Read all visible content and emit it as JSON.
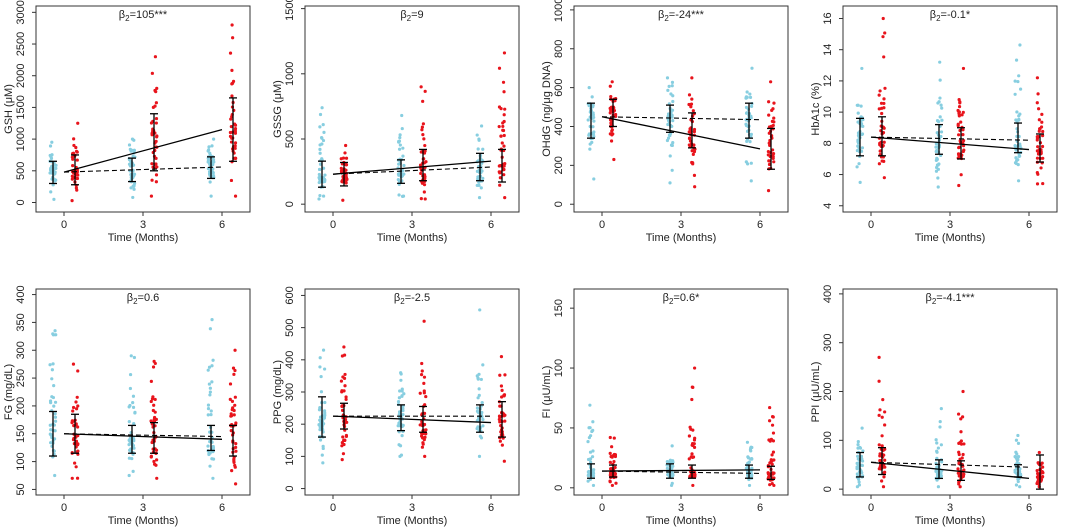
{
  "figure": {
    "x_axis_label": "Time (Months)",
    "colors": {
      "control": "#87cee0",
      "treatment": "#e8141c",
      "frame": "#333333",
      "line": "#000000"
    }
  },
  "chart_data": [
    {
      "type": "scatter",
      "title": "β₂=105***",
      "title_main": "β",
      "title_sub": "2",
      "title_rest": "=105***",
      "ylabel": "GSH (μM)",
      "xlabel": "Time (Months)",
      "xticks": [
        0,
        3,
        6
      ],
      "yticks": [
        0,
        500,
        1000,
        1500,
        2000,
        2500,
        3000
      ],
      "ylim": [
        -150,
        3100
      ],
      "errorbars": [
        {
          "group": "control",
          "x": 0,
          "mean": 480,
          "low": 300,
          "high": 650
        },
        {
          "group": "control",
          "x": 3,
          "mean": 520,
          "low": 330,
          "high": 700
        },
        {
          "group": "control",
          "x": 6,
          "mean": 550,
          "low": 380,
          "high": 720
        },
        {
          "group": "treatment",
          "x": 0,
          "mean": 500,
          "low": 280,
          "high": 750
        },
        {
          "group": "treatment",
          "x": 3,
          "mean": 900,
          "low": 500,
          "high": 1400
        },
        {
          "group": "treatment",
          "x": 6,
          "mean": 1150,
          "low": 650,
          "high": 1650
        }
      ],
      "fit_solid": [
        [
          0,
          480
        ],
        [
          6,
          1150
        ]
      ],
      "fit_dashed": [
        [
          0,
          480
        ],
        [
          6,
          560
        ]
      ],
      "control_range": [
        [
          50,
          950
        ],
        [
          80,
          1000
        ],
        [
          100,
          1000
        ]
      ],
      "treatment_range": [
        [
          30,
          1250
        ],
        [
          100,
          2300
        ],
        [
          100,
          2800
        ]
      ]
    },
    {
      "type": "scatter",
      "title": "β₂=9",
      "title_main": "β",
      "title_sub": "2",
      "title_rest": "=9",
      "ylabel": "GSSG (μM)",
      "xlabel": "Time (Months)",
      "xticks": [
        0,
        3,
        6
      ],
      "yticks": [
        0,
        500,
        1000,
        1500
      ],
      "ylim": [
        -60,
        1520
      ],
      "errorbars": [
        {
          "group": "control",
          "x": 0,
          "mean": 230,
          "low": 130,
          "high": 330
        },
        {
          "group": "control",
          "x": 3,
          "mean": 250,
          "low": 160,
          "high": 340
        },
        {
          "group": "control",
          "x": 6,
          "mean": 280,
          "low": 180,
          "high": 390
        },
        {
          "group": "treatment",
          "x": 0,
          "mean": 230,
          "low": 140,
          "high": 320
        },
        {
          "group": "treatment",
          "x": 3,
          "mean": 300,
          "low": 180,
          "high": 420
        },
        {
          "group": "treatment",
          "x": 6,
          "mean": 330,
          "low": 170,
          "high": 420
        }
      ],
      "fit_solid": [
        [
          0,
          230
        ],
        [
          6,
          330
        ]
      ],
      "fit_dashed": [
        [
          0,
          230
        ],
        [
          6,
          285
        ]
      ],
      "control_range": [
        [
          40,
          740
        ],
        [
          60,
          680
        ],
        [
          50,
          600
        ]
      ],
      "treatment_range": [
        [
          30,
          450
        ],
        [
          40,
          900
        ],
        [
          50,
          1160
        ]
      ]
    },
    {
      "type": "scatter",
      "title": "β₂=-24***",
      "title_main": "β",
      "title_sub": "2",
      "title_rest": "=-24***",
      "ylabel": "OHdG (ng/μg DNA)",
      "xlabel": "Time (Months)",
      "xticks": [
        0,
        3,
        6
      ],
      "yticks": [
        0,
        200,
        400,
        600,
        800,
        1000
      ],
      "ylim": [
        -40,
        1020
      ],
      "errorbars": [
        {
          "group": "control",
          "x": 0,
          "mean": 430,
          "low": 340,
          "high": 520
        },
        {
          "group": "control",
          "x": 3,
          "mean": 430,
          "low": 370,
          "high": 510
        },
        {
          "group": "control",
          "x": 6,
          "mean": 430,
          "low": 340,
          "high": 520
        },
        {
          "group": "treatment",
          "x": 0,
          "mean": 450,
          "low": 400,
          "high": 540
        },
        {
          "group": "treatment",
          "x": 3,
          "mean": 380,
          "low": 290,
          "high": 470
        },
        {
          "group": "treatment",
          "x": 6,
          "mean": 290,
          "low": 180,
          "high": 390
        }
      ],
      "fit_solid": [
        [
          0,
          450
        ],
        [
          6,
          285
        ]
      ],
      "fit_dashed": [
        [
          0,
          450
        ],
        [
          6,
          435
        ]
      ],
      "control_range": [
        [
          130,
          600
        ],
        [
          110,
          650
        ],
        [
          120,
          700
        ]
      ],
      "treatment_range": [
        [
          230,
          630
        ],
        [
          90,
          650
        ],
        [
          70,
          630
        ]
      ]
    },
    {
      "type": "scatter",
      "title": "β₂=-0.1*",
      "title_main": "β",
      "title_sub": "2",
      "title_rest": "=-0.1*",
      "ylabel": "HbA1c (%)",
      "xlabel": "Time (Months)",
      "xticks": [
        0,
        3,
        6
      ],
      "yticks": [
        4,
        6,
        8,
        10,
        12,
        14,
        16
      ],
      "ylim": [
        3.6,
        16.8
      ],
      "errorbars": [
        {
          "group": "control",
          "x": 0,
          "mean": 8.4,
          "low": 7.2,
          "high": 9.6
        },
        {
          "group": "control",
          "x": 3,
          "mean": 8.2,
          "low": 7.3,
          "high": 9.2
        },
        {
          "group": "control",
          "x": 6,
          "mean": 8.2,
          "low": 7.4,
          "high": 9.3
        },
        {
          "group": "treatment",
          "x": 0,
          "mean": 8.4,
          "low": 7.2,
          "high": 9.7
        },
        {
          "group": "treatment",
          "x": 3,
          "mean": 8.0,
          "low": 7.0,
          "high": 9.0
        },
        {
          "group": "treatment",
          "x": 6,
          "mean": 7.6,
          "low": 6.8,
          "high": 8.6
        }
      ],
      "fit_solid": [
        [
          0,
          8.4
        ],
        [
          6,
          7.6
        ]
      ],
      "fit_dashed": [
        [
          0,
          8.4
        ],
        [
          6,
          8.2
        ]
      ],
      "control_range": [
        [
          5.5,
          12.8
        ],
        [
          5.2,
          13.2
        ],
        [
          5.6,
          14.3
        ]
      ],
      "treatment_range": [
        [
          5.8,
          16.0
        ],
        [
          5.3,
          12.8
        ],
        [
          5.4,
          12.2
        ]
      ]
    },
    {
      "type": "scatter",
      "title": "β₂=0.6",
      "title_main": "β",
      "title_sub": "2",
      "title_rest": "=0.6",
      "ylabel": "FG (mg/dL)",
      "xlabel": "Time (Months)",
      "xticks": [
        0,
        3,
        6
      ],
      "yticks": [
        50,
        100,
        150,
        200,
        250,
        300,
        350,
        400
      ],
      "ylim": [
        40,
        410
      ],
      "errorbars": [
        {
          "group": "control",
          "x": 0,
          "mean": 150,
          "low": 110,
          "high": 190
        },
        {
          "group": "control",
          "x": 3,
          "mean": 145,
          "low": 115,
          "high": 165
        },
        {
          "group": "control",
          "x": 6,
          "mean": 145,
          "low": 120,
          "high": 165
        },
        {
          "group": "treatment",
          "x": 0,
          "mean": 150,
          "low": 115,
          "high": 185
        },
        {
          "group": "treatment",
          "x": 3,
          "mean": 145,
          "low": 115,
          "high": 170
        },
        {
          "group": "treatment",
          "x": 6,
          "mean": 140,
          "low": 110,
          "high": 165
        }
      ],
      "fit_solid": [
        [
          0,
          150
        ],
        [
          6,
          140
        ]
      ],
      "fit_dashed": [
        [
          0,
          150
        ],
        [
          6,
          145
        ]
      ],
      "control_range": [
        [
          75,
          335
        ],
        [
          75,
          290
        ],
        [
          70,
          355
        ]
      ],
      "treatment_range": [
        [
          70,
          275
        ],
        [
          70,
          280
        ],
        [
          60,
          300
        ]
      ]
    },
    {
      "type": "scatter",
      "title": "β₂=-2.5",
      "title_main": "β",
      "title_sub": "2",
      "title_rest": "=-2.5",
      "ylabel": "PPG (mg/dL)",
      "xlabel": "Time (Months)",
      "xticks": [
        0,
        3,
        6
      ],
      "yticks": [
        0,
        100,
        200,
        300,
        400,
        500,
        600
      ],
      "ylim": [
        -20,
        620
      ],
      "errorbars": [
        {
          "group": "control",
          "x": 0,
          "mean": 220,
          "low": 160,
          "high": 285
        },
        {
          "group": "control",
          "x": 3,
          "mean": 220,
          "low": 180,
          "high": 260
        },
        {
          "group": "control",
          "x": 6,
          "mean": 215,
          "low": 175,
          "high": 260
        },
        {
          "group": "treatment",
          "x": 0,
          "mean": 225,
          "low": 185,
          "high": 265
        },
        {
          "group": "treatment",
          "x": 3,
          "mean": 215,
          "low": 175,
          "high": 255
        },
        {
          "group": "treatment",
          "x": 6,
          "mean": 210,
          "low": 160,
          "high": 270
        }
      ],
      "fit_solid": [
        [
          0,
          225
        ],
        [
          6,
          205
        ]
      ],
      "fit_dashed": [
        [
          0,
          225
        ],
        [
          6,
          225
        ]
      ],
      "control_range": [
        [
          80,
          430
        ],
        [
          100,
          360
        ],
        [
          100,
          555
        ]
      ],
      "treatment_range": [
        [
          90,
          440
        ],
        [
          100,
          520
        ],
        [
          85,
          410
        ]
      ]
    },
    {
      "type": "scatter",
      "title": "β₂=0.6*",
      "title_main": "β",
      "title_sub": "2",
      "title_rest": "=0.6*",
      "ylabel": "FI (μU/mL)",
      "xlabel": "Time (Months)",
      "xticks": [
        0,
        3,
        6
      ],
      "yticks": [
        0,
        50,
        100,
        150
      ],
      "ylim": [
        -6,
        166
      ],
      "errorbars": [
        {
          "group": "control",
          "x": 0,
          "mean": 14,
          "low": 8,
          "high": 20
        },
        {
          "group": "control",
          "x": 3,
          "mean": 14,
          "low": 8,
          "high": 20
        },
        {
          "group": "control",
          "x": 6,
          "mean": 14,
          "low": 8,
          "high": 19
        },
        {
          "group": "treatment",
          "x": 0,
          "mean": 14,
          "low": 9,
          "high": 19
        },
        {
          "group": "treatment",
          "x": 3,
          "mean": 14,
          "low": 8,
          "high": 19
        },
        {
          "group": "treatment",
          "x": 6,
          "mean": 13,
          "low": 7,
          "high": 18
        }
      ],
      "fit_solid": [
        [
          0,
          14
        ],
        [
          6,
          15
        ]
      ],
      "fit_dashed": [
        [
          0,
          14
        ],
        [
          6,
          12
        ]
      ],
      "control_range": [
        [
          2,
          69
        ],
        [
          2,
          35
        ],
        [
          2,
          38
        ]
      ],
      "treatment_range": [
        [
          2,
          42
        ],
        [
          2,
          100
        ],
        [
          2,
          67
        ]
      ]
    },
    {
      "type": "scatter",
      "title": "β₂=-4.1***",
      "title_main": "β",
      "title_sub": "2",
      "title_rest": "=-4.1***",
      "ylabel": "PPI (μU/mL)",
      "xlabel": "Time (Months)",
      "xticks": [
        0,
        3,
        6
      ],
      "yticks": [
        0,
        100,
        200,
        300,
        400
      ],
      "ylim": [
        -12,
        410
      ],
      "errorbars": [
        {
          "group": "control",
          "x": 0,
          "mean": 50,
          "low": 25,
          "high": 75
        },
        {
          "group": "control",
          "x": 3,
          "mean": 42,
          "low": 22,
          "high": 60
        },
        {
          "group": "control",
          "x": 6,
          "mean": 42,
          "low": 25,
          "high": 50
        },
        {
          "group": "treatment",
          "x": 0,
          "mean": 55,
          "low": 30,
          "high": 85
        },
        {
          "group": "treatment",
          "x": 3,
          "mean": 35,
          "low": 18,
          "high": 58
        },
        {
          "group": "treatment",
          "x": 6,
          "mean": 25,
          "low": 0,
          "high": 70
        }
      ],
      "fit_solid": [
        [
          0,
          55
        ],
        [
          6,
          22
        ]
      ],
      "fit_dashed": [
        [
          0,
          55
        ],
        [
          6,
          45
        ]
      ],
      "control_range": [
        [
          5,
          125
        ],
        [
          5,
          165
        ],
        [
          5,
          110
        ]
      ],
      "treatment_range": [
        [
          5,
          270
        ],
        [
          5,
          200
        ],
        [
          5,
          75
        ]
      ]
    }
  ]
}
